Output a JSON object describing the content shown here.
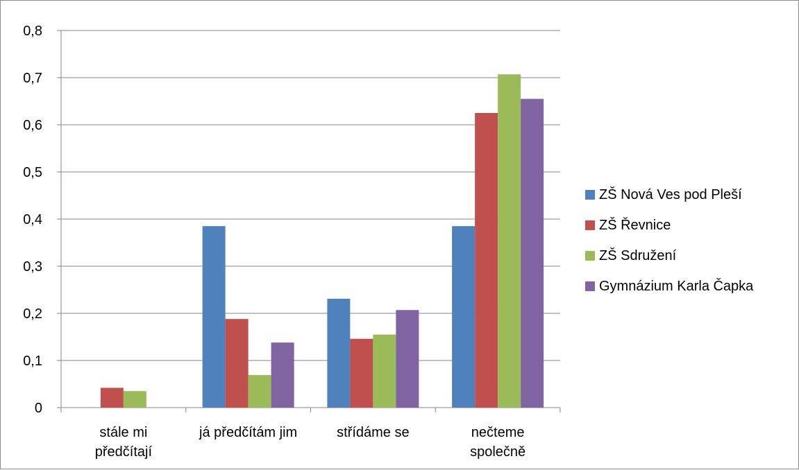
{
  "chart_data": {
    "type": "bar",
    "categories": [
      [
        "stále mi",
        "předčítají"
      ],
      [
        "já předčítám jim"
      ],
      [
        "střídáme se"
      ],
      [
        "nečteme",
        "společně"
      ]
    ],
    "series": [
      {
        "name": "ZŠ Nová Ves pod Pleší",
        "color": "#4f81bd",
        "values": [
          0,
          0.385,
          0.231,
          0.385
        ]
      },
      {
        "name": "ZŠ Řevnice",
        "color": "#c0504d",
        "values": [
          0.042,
          0.188,
          0.146,
          0.625
        ]
      },
      {
        "name": "ZŠ Sdružení",
        "color": "#9bbb59",
        "values": [
          0.035,
          0.069,
          0.155,
          0.707
        ]
      },
      {
        "name": "Gymnázium Karla Čapka",
        "color": "#8064a2",
        "values": [
          0,
          0.138,
          0.207,
          0.655
        ]
      }
    ],
    "yticks": [
      "0",
      "0,1",
      "0,2",
      "0,3",
      "0,4",
      "0,5",
      "0,6",
      "0,7",
      "0,8"
    ],
    "ylim": [
      0,
      0.8
    ],
    "grid": true,
    "legend_position": "right"
  }
}
